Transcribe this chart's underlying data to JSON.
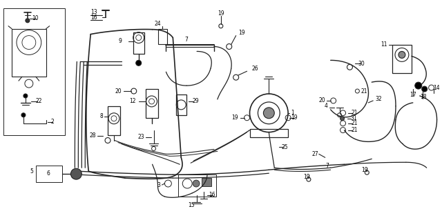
{
  "bg_color": "#ffffff",
  "line_color": "#222222",
  "text_color": "#000000",
  "fig_width": 6.4,
  "fig_height": 3.03,
  "dpi": 100
}
